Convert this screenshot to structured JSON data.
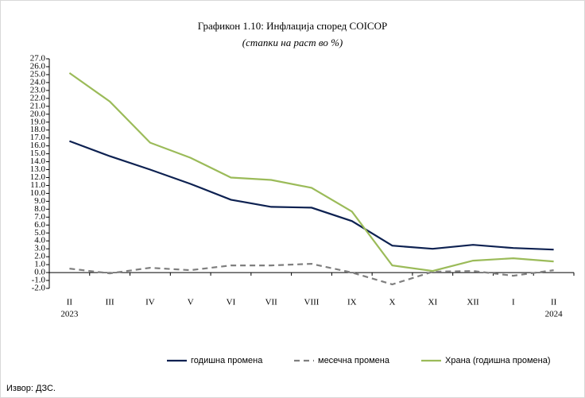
{
  "chart_data": {
    "type": "line",
    "title": "Графикон 1.10: Инфлација според COICOP",
    "subtitle": "(стапки на раст во %)",
    "source": "Извор: ДЗС.",
    "categories": [
      "II",
      "III",
      "IV",
      "V",
      "VI",
      "VII",
      "VIII",
      "IX",
      "X",
      "XI",
      "XII",
      "I",
      "II"
    ],
    "category_years": [
      "2023",
      null,
      null,
      null,
      null,
      null,
      null,
      null,
      null,
      null,
      null,
      null,
      "2024"
    ],
    "ylim": [
      -2,
      27
    ],
    "yticks": [
      {
        "value": -2,
        "label": "-2.0"
      },
      {
        "value": -1,
        "label": "-1.0"
      },
      {
        "value": 0,
        "label": "0.0"
      },
      {
        "value": 1,
        "label": "1.0"
      },
      {
        "value": 2,
        "label": "2.0"
      },
      {
        "value": 3,
        "label": "3.0"
      },
      {
        "value": 4,
        "label": "4.0"
      },
      {
        "value": 5,
        "label": "5.0"
      },
      {
        "value": 6,
        "label": "6.0"
      },
      {
        "value": 7,
        "label": "7.0"
      },
      {
        "value": 8,
        "label": "8.0"
      },
      {
        "value": 9,
        "label": "9.0"
      },
      {
        "value": 10,
        "label": "10.0"
      },
      {
        "value": 11,
        "label": "11.0"
      },
      {
        "value": 12,
        "label": "12.0"
      },
      {
        "value": 13,
        "label": "13.0"
      },
      {
        "value": 14,
        "label": "14.0"
      },
      {
        "value": 15,
        "label": "15.0"
      },
      {
        "value": 16,
        "label": "16.0"
      },
      {
        "value": 17,
        "label": "17.0"
      },
      {
        "value": 18,
        "label": "18.0"
      },
      {
        "value": 19,
        "label": "19.0"
      },
      {
        "value": 20,
        "label": "20.0"
      },
      {
        "value": 21,
        "label": "21.0"
      },
      {
        "value": 22,
        "label": "22.0"
      },
      {
        "value": 23,
        "label": "23.0"
      },
      {
        "value": 24,
        "label": "24.0"
      },
      {
        "value": 25,
        "label": "25.0"
      },
      {
        "value": 26,
        "label": "26.0"
      },
      {
        "value": 27,
        "label": "27.0"
      }
    ],
    "grid": false,
    "legend": "bottom",
    "series": [
      {
        "name": "годишна промена",
        "color": "#0d2151",
        "linestyle": "solid",
        "values": [
          16.6,
          14.7,
          13.0,
          11.2,
          9.2,
          8.3,
          8.2,
          6.5,
          3.4,
          3.0,
          3.5,
          3.1,
          2.9
        ]
      },
      {
        "name": "месечна промена",
        "color": "#7f7f7f",
        "linestyle": "dashed",
        "values": [
          0.5,
          -0.1,
          0.6,
          0.3,
          0.9,
          0.9,
          1.1,
          0.0,
          -1.5,
          0.1,
          0.2,
          -0.4,
          0.3
        ]
      },
      {
        "name": "Храна  (годишна промена)",
        "color": "#9bbb59",
        "linestyle": "solid",
        "values": [
          25.2,
          21.6,
          16.4,
          14.5,
          12.0,
          11.7,
          10.7,
          7.7,
          0.9,
          0.2,
          1.5,
          1.8,
          1.4
        ]
      }
    ]
  }
}
